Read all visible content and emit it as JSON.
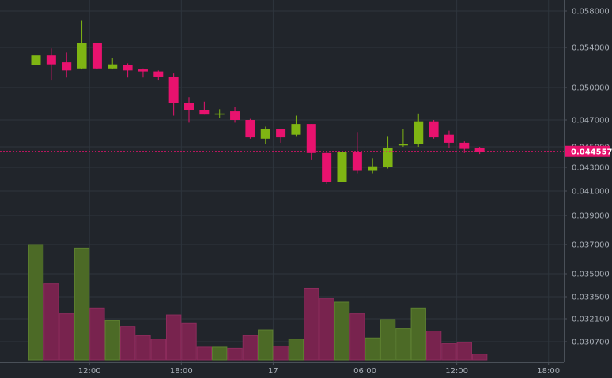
{
  "chart_data": {
    "type": "candlestick",
    "colors": {
      "background": "#21252b",
      "grid": "#2e353d",
      "axis": "#4a5058",
      "up": "#7fb513",
      "down": "#e8126e",
      "up_volume": "#4c6a26",
      "down_volume": "#78234e",
      "price_line": "#e8126e"
    },
    "price_axis": {
      "ticks": [
        "0.058000",
        "0.054000",
        "0.050000",
        "0.047000",
        "0.045000",
        "0.043000",
        "0.041000",
        "0.039000",
        "0.037000",
        "0.035000",
        "0.033500",
        "0.032100",
        "0.030700"
      ]
    },
    "time_axis": {
      "ticks": [
        {
          "label": "12:00",
          "slot": 3.5
        },
        {
          "label": "18:00",
          "slot": 9.5
        },
        {
          "label": "17",
          "slot": 15.5
        },
        {
          "label": "06:00",
          "slot": 21.5
        },
        {
          "label": "12:00",
          "slot": 27.5
        },
        {
          "label": "18:00",
          "slot": 33.5
        }
      ]
    },
    "current_price": "0.044557",
    "candles": [
      {
        "open": 0.0522,
        "high": 0.057,
        "low": 0.0312,
        "close": 0.0532,
        "volume": 100
      },
      {
        "open": 0.0532,
        "high": 0.0539,
        "low": 0.0507,
        "close": 0.0523,
        "volume": 66
      },
      {
        "open": 0.0525,
        "high": 0.0535,
        "low": 0.051,
        "close": 0.0517,
        "volume": 40
      },
      {
        "open": 0.0519,
        "high": 0.057,
        "low": 0.0518,
        "close": 0.0545,
        "volume": 97
      },
      {
        "open": 0.0545,
        "high": 0.0545,
        "low": 0.0518,
        "close": 0.0519,
        "volume": 45
      },
      {
        "open": 0.0519,
        "high": 0.0529,
        "low": 0.0518,
        "close": 0.0523,
        "volume": 34
      },
      {
        "open": 0.0522,
        "high": 0.0524,
        "low": 0.051,
        "close": 0.0517,
        "volume": 29
      },
      {
        "open": 0.0518,
        "high": 0.0519,
        "low": 0.051,
        "close": 0.0516,
        "volume": 21
      },
      {
        "open": 0.0516,
        "high": 0.0517,
        "low": 0.0507,
        "close": 0.0511,
        "volume": 18
      },
      {
        "open": 0.0511,
        "high": 0.0514,
        "low": 0.0474,
        "close": 0.0486,
        "volume": 39
      },
      {
        "open": 0.0486,
        "high": 0.0491,
        "low": 0.0468,
        "close": 0.0479,
        "volume": 32
      },
      {
        "open": 0.0479,
        "high": 0.0487,
        "low": 0.0475,
        "close": 0.0475,
        "volume": 11
      },
      {
        "open": 0.0475,
        "high": 0.048,
        "low": 0.0472,
        "close": 0.0476,
        "volume": 11
      },
      {
        "open": 0.0478,
        "high": 0.0482,
        "low": 0.0468,
        "close": 0.047,
        "volume": 10
      },
      {
        "open": 0.047,
        "high": 0.0471,
        "low": 0.0456,
        "close": 0.0457,
        "volume": 21
      },
      {
        "open": 0.0456,
        "high": 0.0465,
        "low": 0.0452,
        "close": 0.0463,
        "volume": 26
      },
      {
        "open": 0.0463,
        "high": 0.0463,
        "low": 0.0453,
        "close": 0.0457,
        "volume": 12
      },
      {
        "open": 0.0459,
        "high": 0.0474,
        "low": 0.0458,
        "close": 0.0467,
        "volume": 18
      },
      {
        "open": 0.0467,
        "high": 0.0467,
        "low": 0.0437,
        "close": 0.0444,
        "volume": 62
      },
      {
        "open": 0.0444,
        "high": 0.0445,
        "low": 0.0416,
        "close": 0.0418,
        "volume": 53
      },
      {
        "open": 0.0418,
        "high": 0.0458,
        "low": 0.0417,
        "close": 0.0445,
        "volume": 50
      },
      {
        "open": 0.0445,
        "high": 0.0461,
        "low": 0.0425,
        "close": 0.0427,
        "volume": 40
      },
      {
        "open": 0.0427,
        "high": 0.0439,
        "low": 0.0425,
        "close": 0.0431,
        "volume": 19
      },
      {
        "open": 0.043,
        "high": 0.0458,
        "low": 0.0429,
        "close": 0.0449,
        "volume": 35
      },
      {
        "open": 0.0451,
        "high": 0.0463,
        "low": 0.045,
        "close": 0.0452,
        "volume": 27
      },
      {
        "open": 0.0452,
        "high": 0.0476,
        "low": 0.045,
        "close": 0.0469,
        "volume": 45
      },
      {
        "open": 0.0469,
        "high": 0.047,
        "low": 0.0456,
        "close": 0.0457,
        "volume": 25
      },
      {
        "open": 0.0459,
        "high": 0.0462,
        "low": 0.0449,
        "close": 0.0453,
        "volume": 14
      },
      {
        "open": 0.0453,
        "high": 0.0454,
        "low": 0.0444,
        "close": 0.0448,
        "volume": 15
      },
      {
        "open": 0.0449,
        "high": 0.045,
        "low": 0.0443,
        "close": 0.0445,
        "volume": 5
      }
    ]
  }
}
